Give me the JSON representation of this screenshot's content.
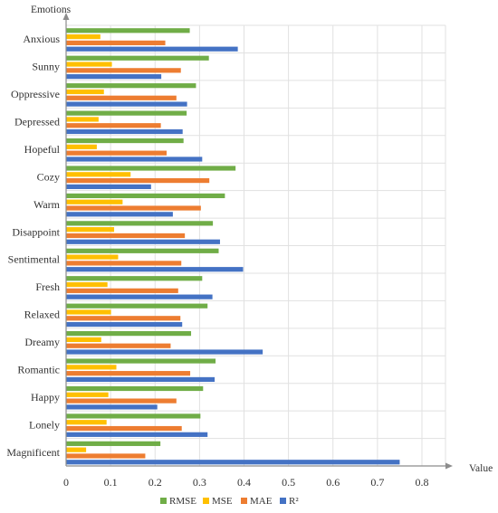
{
  "chart_data": {
    "type": "bar",
    "orientation": "horizontal",
    "ylabel": "Emotions",
    "xlabel": "Value",
    "xlim": [
      0,
      0.8
    ],
    "x_ticks": [
      "0",
      "0.1",
      "0.2",
      "0.3",
      "0.4",
      "0.5",
      "0.6",
      "0.7",
      "0.8"
    ],
    "grid": true,
    "legend_position": "bottom",
    "categories": [
      "Anxious",
      "Sunny",
      "Oppressive",
      "Depressed",
      "Hopeful",
      "Cozy",
      "Warm",
      "Disappoint",
      "Sentimental",
      "Fresh",
      "Relaxed",
      "Dreamy",
      "Romantic",
      "Happy",
      "Lonely",
      "Magnificent"
    ],
    "series": [
      {
        "name": "RMSE",
        "color": "#70ad47",
        "values": [
          0.278,
          0.321,
          0.292,
          0.271,
          0.264,
          0.381,
          0.357,
          0.33,
          0.343,
          0.306,
          0.318,
          0.281,
          0.336,
          0.308,
          0.302,
          0.212
        ]
      },
      {
        "name": "MSE",
        "color": "#ffc000",
        "values": [
          0.077,
          0.103,
          0.085,
          0.073,
          0.069,
          0.145,
          0.127,
          0.108,
          0.117,
          0.093,
          0.101,
          0.079,
          0.113,
          0.095,
          0.091,
          0.045
        ]
      },
      {
        "name": "MAE",
        "color": "#ed7d31",
        "values": [
          0.223,
          0.258,
          0.248,
          0.213,
          0.226,
          0.322,
          0.303,
          0.267,
          0.259,
          0.252,
          0.257,
          0.235,
          0.279,
          0.248,
          0.26,
          0.178
        ]
      },
      {
        "name": "R²",
        "color": "#4472c4",
        "values": [
          0.386,
          0.214,
          0.272,
          0.262,
          0.306,
          0.191,
          0.24,
          0.346,
          0.398,
          0.329,
          0.261,
          0.442,
          0.334,
          0.205,
          0.318,
          0.75
        ]
      }
    ]
  }
}
